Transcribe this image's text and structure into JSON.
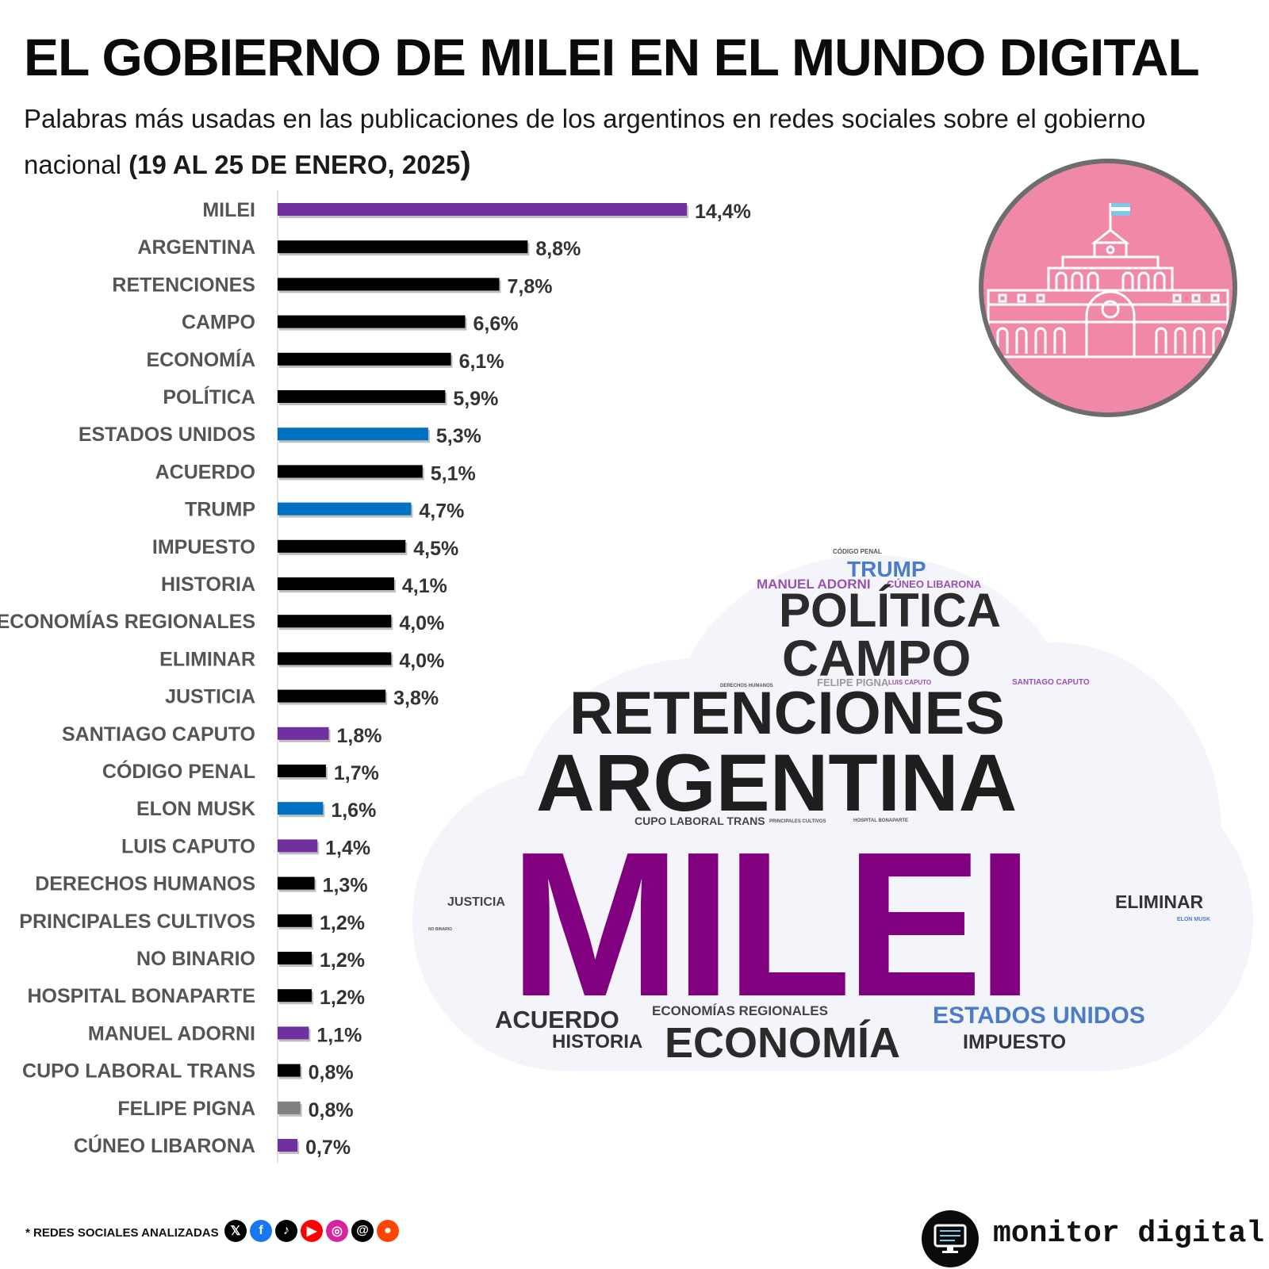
{
  "header": {
    "title": "EL GOBIERNO DE MILEI EN EL MUNDO DIGITAL",
    "subtitle": "Palabras más usadas en las publicaciones de los argentinos en redes sociales sobre el gobierno nacional ",
    "date_range": "(19 AL 25 DE ENERO, 2025",
    "date_close": ")"
  },
  "colors": {
    "purple": "#7030a0",
    "black": "#000000",
    "blue": "#0070c0",
    "gray": "#808080",
    "cloud_purple": "#800080",
    "cloud_blue": "#4a7cc9",
    "emblem_bg": "#f089a8"
  },
  "chart_data": {
    "type": "bar",
    "orientation": "horizontal",
    "title": "Palabras más usadas",
    "categories": [
      "MILEI",
      "ARGENTINA",
      "RETENCIONES",
      "CAMPO",
      "ECONOMÍA",
      "POLÍTICA",
      "ESTADOS UNIDOS",
      "ACUERDO",
      "TRUMP",
      "IMPUESTO",
      "HISTORIA",
      "ECONOMÍAS REGIONALES",
      "ELIMINAR",
      "JUSTICIA",
      "SANTIAGO CAPUTO",
      "CÓDIGO PENAL",
      "ELON MUSK",
      "LUIS CAPUTO",
      "DERECHOS HUMANOS",
      "PRINCIPALES CULTIVOS",
      "NO BINARIO",
      "HOSPITAL BONAPARTE",
      "MANUEL ADORNI",
      "CUPO LABORAL TRANS",
      "FELIPE PIGNA",
      "CÚNEO LIBARONA"
    ],
    "values": [
      14.4,
      8.8,
      7.8,
      6.6,
      6.1,
      5.9,
      5.3,
      5.1,
      4.7,
      4.5,
      4.1,
      4.0,
      4.0,
      3.8,
      1.8,
      1.7,
      1.6,
      1.4,
      1.3,
      1.2,
      1.2,
      1.2,
      1.1,
      0.8,
      0.8,
      0.7
    ],
    "value_labels": [
      "14,4%",
      "8,8%",
      "7,8%",
      "6,6%",
      "6,1%",
      "5,9%",
      "5,3%",
      "5,1%",
      "4,7%",
      "4,5%",
      "4,1%",
      "4,0%",
      "4,0%",
      "3,8%",
      "1,8%",
      "1,7%",
      "1,6%",
      "1,4%",
      "1,3%",
      "1,2%",
      "1,2%",
      "1,2%",
      "1,1%",
      "0,8%",
      "0,8%",
      "0,7%"
    ],
    "bar_colors": [
      "purple",
      "black",
      "black",
      "black",
      "black",
      "black",
      "blue",
      "black",
      "blue",
      "black",
      "black",
      "black",
      "black",
      "black",
      "purple",
      "black",
      "blue",
      "purple",
      "black",
      "black",
      "black",
      "black",
      "purple",
      "black",
      "gray",
      "purple"
    ],
    "xlim": [
      0,
      16
    ],
    "unit": "%"
  },
  "wordcloud": [
    {
      "text": "CÓDIGO PENAL",
      "color": "#555555"
    },
    {
      "text": "TRUMP",
      "color": "#4a7cc9"
    },
    {
      "text": "MANUEL ADORNI",
      "color": "#9b4fb0"
    },
    {
      "text": "CÚNEO LIBARONA",
      "color": "#9b4fb0"
    },
    {
      "text": "POLÍTICA",
      "color": "#2b2b2b"
    },
    {
      "text": "CAMPO",
      "color": "#2b2b2b"
    },
    {
      "text": "DERECHOS HUMANOS",
      "color": "#555555"
    },
    {
      "text": "FELIPE PIGNA",
      "color": "#9a9a9a"
    },
    {
      "text": "LUIS CAPUTO",
      "color": "#9b4fb0"
    },
    {
      "text": "SANTIAGO CAPUTO",
      "color": "#9b4fb0"
    },
    {
      "text": "RETENCIONES",
      "color": "#222222"
    },
    {
      "text": "ARGENTINA",
      "color": "#1e1e1e"
    },
    {
      "text": "CUPO LABORAL TRANS",
      "color": "#444444"
    },
    {
      "text": "PRINCIPALES CULTIVOS",
      "color": "#555555"
    },
    {
      "text": "HOSPITAL BONAPARTE",
      "color": "#555555"
    },
    {
      "text": "MILEI",
      "color": "#800080"
    },
    {
      "text": "JUSTICIA",
      "color": "#444444"
    },
    {
      "text": "NO BINARIO",
      "color": "#555555"
    },
    {
      "text": "ELIMINAR",
      "color": "#333333"
    },
    {
      "text": "ELON MUSK",
      "color": "#4a7cc9"
    },
    {
      "text": "ACUERDO",
      "color": "#333333"
    },
    {
      "text": "ECONOMÍAS REGIONALES",
      "color": "#444444"
    },
    {
      "text": "ESTADOS UNIDOS",
      "color": "#4a7cc9"
    },
    {
      "text": "HISTORIA",
      "color": "#333333"
    },
    {
      "text": "ECONOMÍA",
      "color": "#2b2b2b"
    },
    {
      "text": "IMPUESTO",
      "color": "#333333"
    }
  ],
  "footer": {
    "note": "* REDES SOCIALES ANALIZADAS",
    "socials": [
      {
        "icon": "x-icon",
        "glyph": "𝕏",
        "color": "#000000"
      },
      {
        "icon": "facebook-icon",
        "glyph": "f",
        "color": "#1877f2"
      },
      {
        "icon": "tiktok-icon",
        "glyph": "♪",
        "color": "#000000"
      },
      {
        "icon": "youtube-icon",
        "glyph": "▶",
        "color": "#ff0000"
      },
      {
        "icon": "instagram-icon",
        "glyph": "◎",
        "color": "#d6249f"
      },
      {
        "icon": "threads-icon",
        "glyph": "@",
        "color": "#000000"
      },
      {
        "icon": "reddit-icon",
        "glyph": "●",
        "color": "#ff4500"
      }
    ],
    "brand": "monitor digital"
  }
}
